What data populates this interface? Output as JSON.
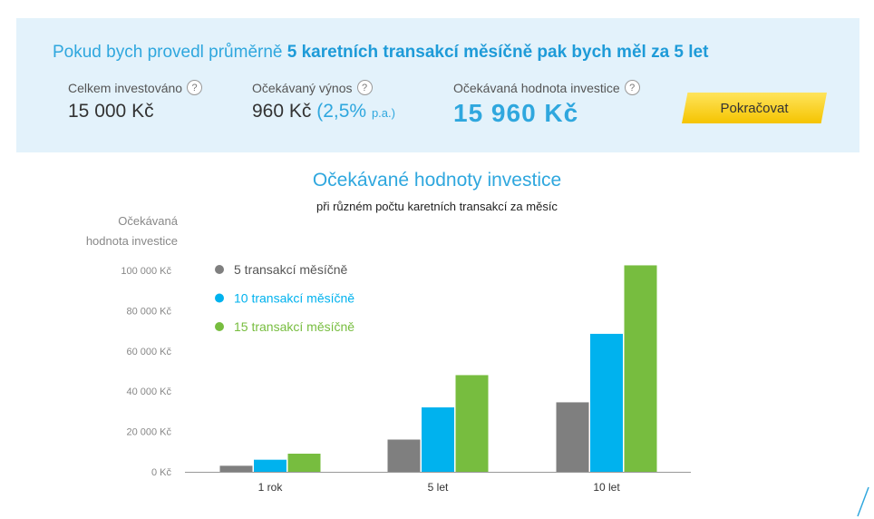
{
  "summary": {
    "headline_prefix": "Pokud bych provedl průměrně",
    "headline_bold": "5 karetních transakcí měsíčně pak bych měl za 5 let",
    "invested_label": "Celkem investováno",
    "invested_value": "15 000 Kč",
    "yield_label": "Očekávaný výnos",
    "yield_value": "960 Kč",
    "yield_rate": "(2,5%",
    "yield_pa": "p.a.)",
    "total_label": "Očekávaná hodnota investice",
    "total_value": "15 960 Kč",
    "help_glyph": "?",
    "cta_label": "Pokračovat"
  },
  "chart_data": {
    "type": "bar",
    "title": "Očekávané hodnoty investice",
    "subtitle": "při různém počtu karetních transakcí za měsíc",
    "ylabel_lines": [
      "Očekávaná",
      "hodnota investice"
    ],
    "categories": [
      "1 rok",
      "5 let",
      "10 let"
    ],
    "series": [
      {
        "name": "5 transakcí měsíčně",
        "color": "#7f7f7f",
        "values": [
          3000,
          16000,
          34500
        ]
      },
      {
        "name": "10 transakcí měsíčně",
        "color": "#00b2ee",
        "values": [
          6000,
          32000,
          68500
        ]
      },
      {
        "name": "15 transakcí měsíčně",
        "color": "#77bd3f",
        "values": [
          9000,
          48000,
          102500
        ]
      }
    ],
    "y_ticks": [
      "0 Kč",
      "20 000 Kč",
      "40 000 Kč",
      "60 000 Kč",
      "80 000 Kč",
      "100 000 Kč"
    ],
    "y_tick_values": [
      0,
      20000,
      40000,
      60000,
      80000,
      100000
    ],
    "ylim": [
      0,
      100000
    ],
    "grid": false,
    "legend_placement": "top-left"
  }
}
